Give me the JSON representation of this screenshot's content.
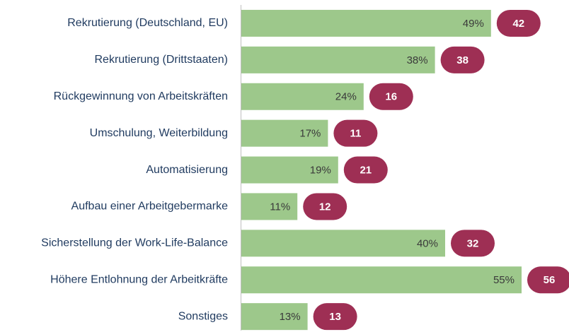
{
  "chart_data": {
    "type": "bar",
    "orientation": "horizontal",
    "categories": [
      "Rekrutierung (Deutschland, EU)",
      "Rekrutierung (Drittstaaten)",
      "Rückgewinnung von Arbeitskräften",
      "Umschulung, Weiterbildung",
      "Automatisierung",
      "Aufbau einer Arbeitgebermarke",
      "Sicherstellung der Work-Life-Balance",
      "Höhere Entlohnung der Arbeitkräfte",
      "Sonstiges"
    ],
    "values": [
      49,
      38,
      24,
      17,
      19,
      11,
      40,
      55,
      13
    ],
    "value_labels": [
      "49%",
      "38%",
      "24%",
      "17%",
      "19%",
      "11%",
      "40%",
      "55%",
      "13%"
    ],
    "counts": [
      42,
      38,
      16,
      11,
      21,
      12,
      32,
      56,
      13
    ],
    "color": "#9dc88b",
    "count_color": "#9e2f54",
    "xlim": [
      0,
      55
    ]
  }
}
